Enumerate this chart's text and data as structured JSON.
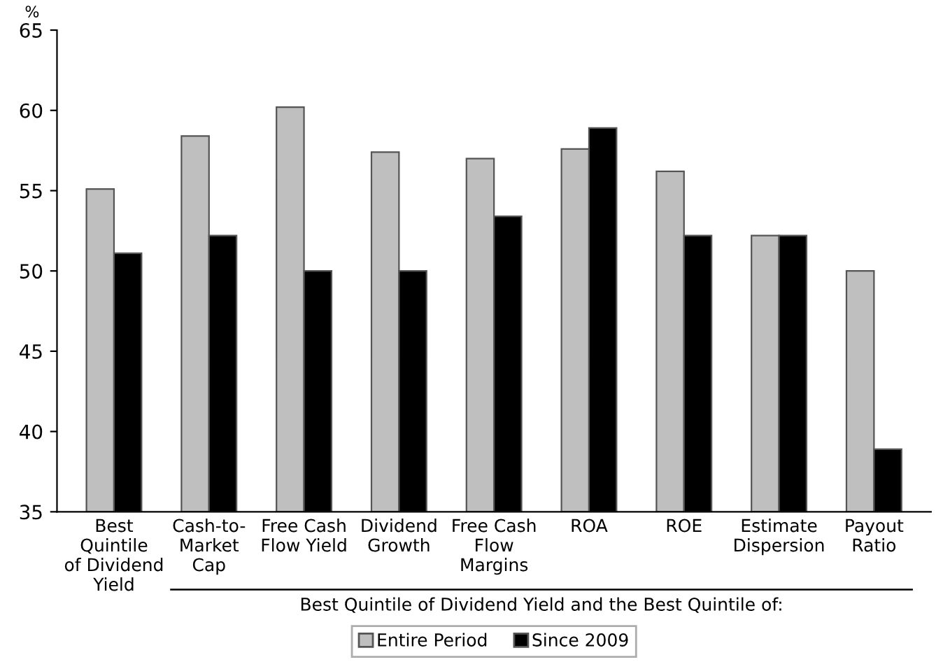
{
  "chart_data": {
    "type": "bar",
    "ylabel": "%",
    "categories": [
      "Best\nQuintile\nof Dividend\nYield",
      "Cash-to-\nMarket\nCap",
      "Free Cash\nFlow Yield",
      "Dividend\nGrowth",
      "Free Cash\nFlow\nMargins",
      "ROA",
      "ROE",
      "Estimate\nDispersion",
      "Payout\nRatio"
    ],
    "series": [
      {
        "name": "Entire Period",
        "color": "#bfbfbf",
        "values": [
          55.1,
          58.4,
          60.2,
          57.4,
          57.0,
          57.6,
          56.2,
          52.2,
          50.0
        ]
      },
      {
        "name": "Since 2009",
        "color": "#000000",
        "values": [
          51.1,
          52.2,
          50.0,
          50.0,
          53.4,
          58.9,
          52.2,
          52.2,
          38.9
        ]
      }
    ],
    "ylim": [
      35,
      65
    ],
    "yticks": [
      35,
      40,
      45,
      50,
      55,
      60,
      65
    ],
    "grid": false,
    "legend": "bottom",
    "annotations": [
      "Best Quintile of Dividend Yield and the Best Quintile of:"
    ]
  }
}
